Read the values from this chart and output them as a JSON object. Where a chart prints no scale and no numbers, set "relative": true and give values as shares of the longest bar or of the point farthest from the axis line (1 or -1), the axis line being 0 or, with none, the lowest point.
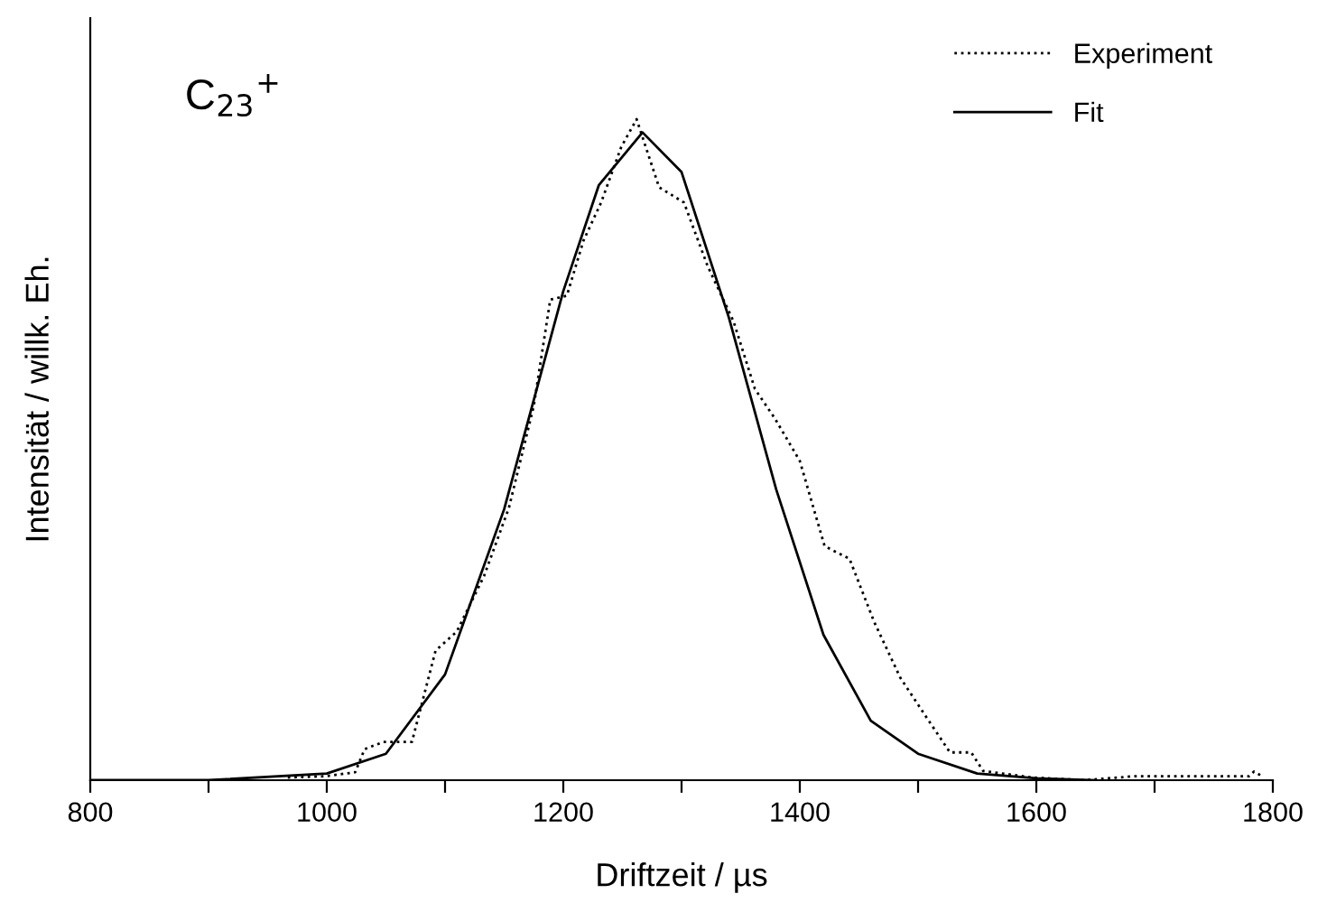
{
  "chart_data": {
    "type": "line",
    "relative": true,
    "xlabel": "Driftzeit / µs",
    "ylabel": "Intensität / willk. Eh.",
    "xlim": [
      800,
      1800
    ],
    "xticks": [
      800,
      {
        "value": 900,
        "label": null
      },
      1000,
      {
        "value": 1100,
        "label": null
      },
      1200,
      {
        "value": 1300,
        "label": null
      },
      1400,
      {
        "value": 1500,
        "label": null
      },
      1600,
      {
        "value": 1700,
        "label": null
      },
      1800
    ],
    "tick_labels": "x",
    "legend": "top right",
    "grid": false,
    "annotations": [
      "C$_{23}$$^{+}$"
    ],
    "series": [
      {
        "name": "Experiment",
        "color": "#000000",
        "line_style": "dotted",
        "x": [
          967,
          999,
          1024,
          1032,
          1048,
          1072,
          1092,
          1110,
          1133,
          1154,
          1175,
          1189,
          1203,
          1217,
          1232,
          1249,
          1262,
          1281,
          1302,
          1322,
          1344,
          1362,
          1379,
          1400,
          1421,
          1442,
          1463,
          1485,
          1506,
          1527,
          1545,
          1555,
          1597,
          1640,
          1683,
          1780,
          1784,
          1791
        ],
        "values": [
          0.004,
          0.006,
          0.012,
          0.047,
          0.058,
          0.058,
          0.196,
          0.225,
          0.309,
          0.412,
          0.566,
          0.727,
          0.733,
          0.816,
          0.874,
          0.958,
          1.0,
          0.897,
          0.874,
          0.778,
          0.694,
          0.592,
          0.547,
          0.483,
          0.354,
          0.335,
          0.239,
          0.155,
          0.098,
          0.042,
          0.042,
          0.014,
          0.004,
          0,
          0.006,
          0.006,
          0.013,
          0.006
        ]
      },
      {
        "name": "Fit",
        "color": "#000000",
        "line_style": "solid",
        "x": [
          800,
          900,
          1000,
          1050,
          1100,
          1150,
          1200,
          1230,
          1267,
          1300,
          1340,
          1380,
          1420,
          1460,
          1500,
          1550,
          1600,
          1650
        ],
        "values": [
          0,
          0,
          0.01,
          0.04,
          0.16,
          0.41,
          0.74,
          0.9,
          0.98,
          0.92,
          0.7,
          0.44,
          0.22,
          0.09,
          0.04,
          0.01,
          0.003,
          0
        ]
      }
    ]
  }
}
